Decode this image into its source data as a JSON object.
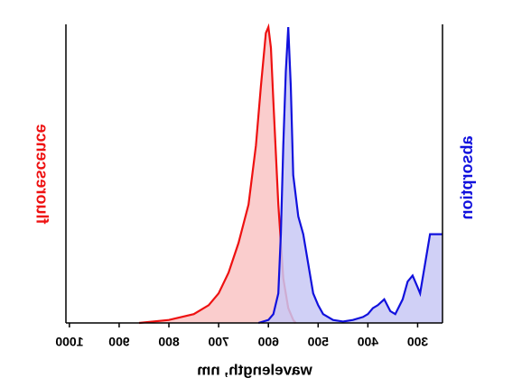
{
  "chart_data": {
    "type": "line",
    "x_label": "wavelength, nm",
    "y_label": "fluorescence",
    "y2_label": "absorption",
    "xlim": [
      1007,
      250
    ],
    "xticks": [
      1000,
      900,
      800,
      700,
      600,
      500,
      400,
      300
    ],
    "ylim": [
      0,
      1
    ],
    "y2lim": [
      0,
      1
    ],
    "series": [
      {
        "name": "fluorescence",
        "color": "#ee1111",
        "fill_color": "#f9c4c4",
        "x": [
          860,
          800,
          750,
          720,
          700,
          680,
          660,
          640,
          625,
          615,
          605,
          600,
          595,
          590,
          580,
          570,
          560,
          550,
          545
        ],
        "values": [
          0,
          0.01,
          0.03,
          0.06,
          0.1,
          0.17,
          0.27,
          0.4,
          0.6,
          0.8,
          0.98,
          1.0,
          0.93,
          0.75,
          0.4,
          0.15,
          0.05,
          0.01,
          0
        ]
      },
      {
        "name": "absorption",
        "color": "#1111dd",
        "fill_color": "#c8c8f4",
        "axis": "y2",
        "x": [
          620,
          600,
          590,
          580,
          575,
          570,
          565,
          560,
          555,
          550,
          540,
          530,
          520,
          510,
          500,
          490,
          470,
          450,
          430,
          410,
          400,
          390,
          380,
          367,
          355,
          345,
          330,
          320,
          310,
          300,
          295,
          285,
          275,
          265,
          250
        ],
        "values": [
          0,
          0.01,
          0.03,
          0.1,
          0.3,
          0.6,
          0.85,
          1.0,
          0.8,
          0.5,
          0.36,
          0.3,
          0.2,
          0.1,
          0.06,
          0.03,
          0.01,
          0.005,
          0.01,
          0.02,
          0.03,
          0.05,
          0.06,
          0.08,
          0.04,
          0.03,
          0.08,
          0.14,
          0.16,
          0.12,
          0.1,
          0.2,
          0.3,
          0.3,
          0.3
        ]
      }
    ]
  }
}
